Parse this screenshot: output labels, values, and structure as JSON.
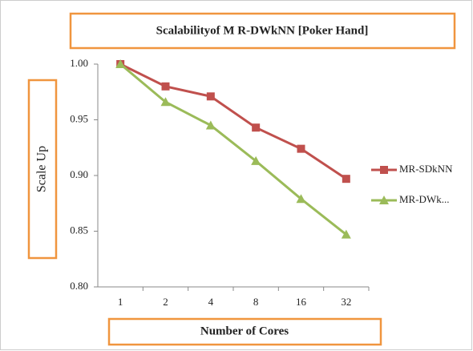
{
  "chart_data": {
    "type": "line",
    "title": "Scalabilityof M R-DWkNN [Poker Hand]",
    "xlabel": "Number of Cores",
    "ylabel": "Scale Up",
    "categories": [
      "1",
      "2",
      "4",
      "8",
      "16",
      "32"
    ],
    "series": [
      {
        "name": "MR-SDkNN",
        "color": "#c0504d",
        "marker": "square",
        "values": [
          1.0,
          0.98,
          0.971,
          0.943,
          0.924,
          0.897
        ]
      },
      {
        "name": "MR-DWk...",
        "color": "#9bbb59",
        "marker": "triangle",
        "values": [
          1.0,
          0.966,
          0.945,
          0.913,
          0.879,
          0.847
        ]
      }
    ],
    "ylim": [
      0.8,
      1.0
    ],
    "yticks": [
      {
        "value": 0.8,
        "label": "0.80"
      },
      0.85,
      {
        "value": 0.9,
        "label": "0.90"
      },
      0.95,
      {
        "value": 1.0,
        "label": "1.00"
      }
    ],
    "legend": "right"
  }
}
